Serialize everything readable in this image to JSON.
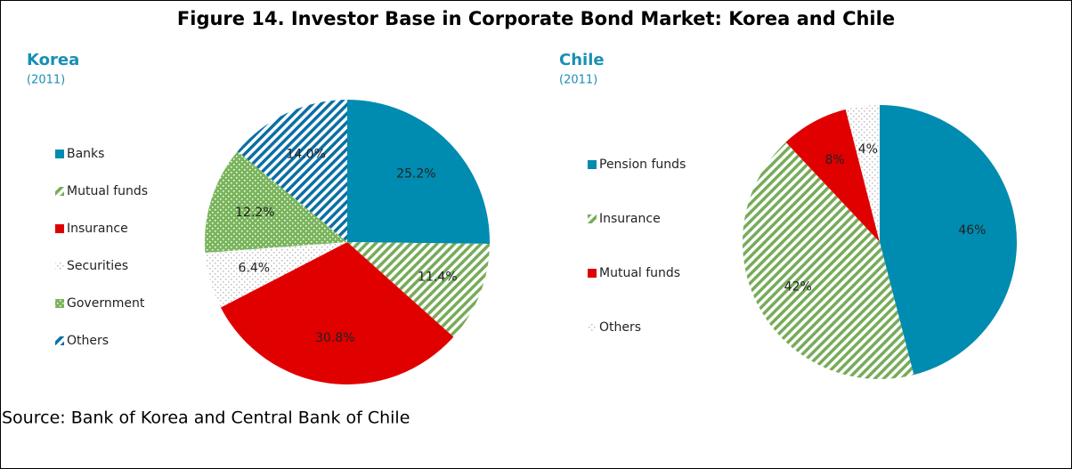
{
  "title": "Figure 14. Investor Base in Corporate Bond Market: Korea and Chile",
  "source": "Source: Bank of Korea and Central Bank of Chile",
  "chart_data": [
    {
      "type": "pie",
      "title": "Korea",
      "subtitle": "(2011)",
      "categories": [
        "Banks",
        "Mutual funds",
        "Insurance",
        "Securities",
        "Government",
        "Others"
      ],
      "values": [
        25.2,
        11.4,
        30.8,
        6.4,
        12.2,
        14.0
      ],
      "value_labels": [
        "25.2%",
        "11.4%",
        "30.8%",
        "6.4%",
        "12.2%",
        "14.0%"
      ],
      "colors": [
        "#008bb0",
        "#77ab59",
        "#e00000",
        "#bdbdbd",
        "#7ab55c",
        "#0b6fa4"
      ],
      "patterns": [
        "solid",
        "stripes",
        "solid",
        "dots",
        "dotsdark",
        "stripes"
      ],
      "legend": "left"
    },
    {
      "type": "pie",
      "title": "Chile",
      "subtitle": "(2011)",
      "categories": [
        "Pension funds",
        "Insurance",
        "Mutual funds",
        "Others"
      ],
      "values": [
        46,
        42,
        8,
        4
      ],
      "value_labels": [
        "46%",
        "42%",
        "8%",
        "4%"
      ],
      "colors": [
        "#008bb0",
        "#77ab59",
        "#e00000",
        "#bdbdbd"
      ],
      "patterns": [
        "solid",
        "stripes",
        "solid",
        "dots"
      ],
      "legend": "left"
    }
  ]
}
